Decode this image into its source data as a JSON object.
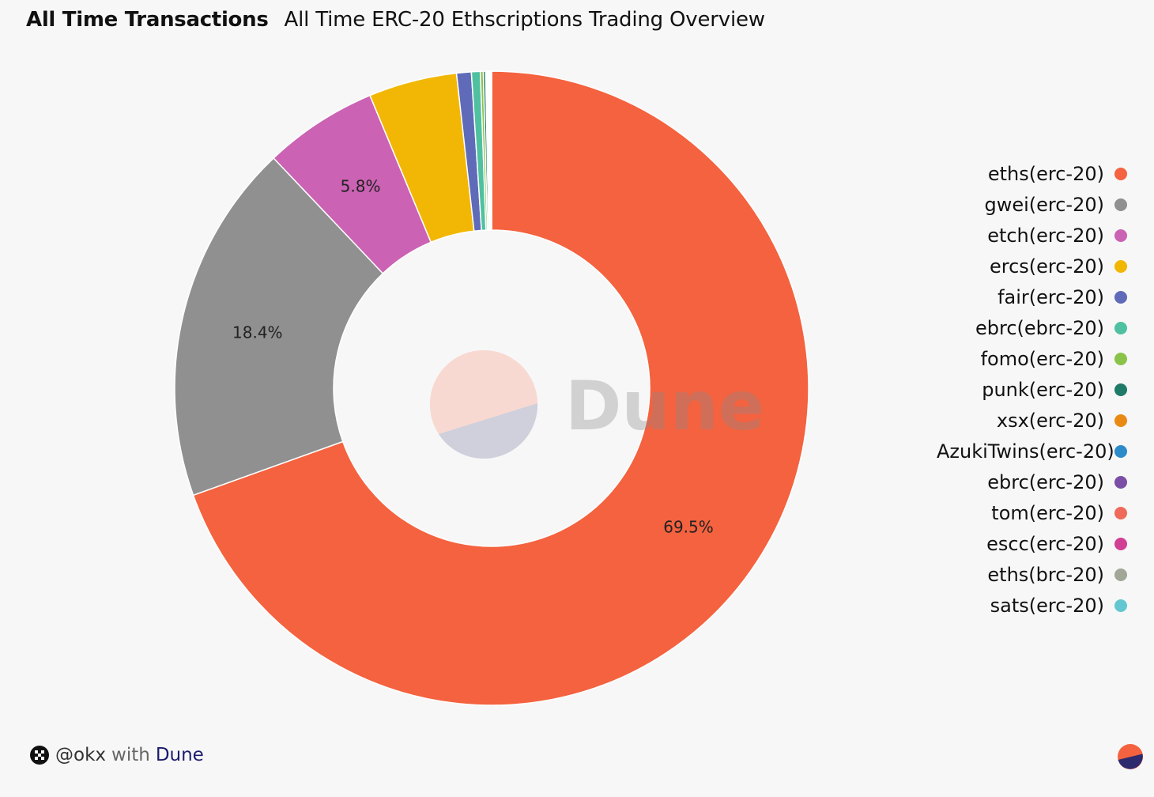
{
  "header": {
    "title": "All Time Transactions",
    "subtitle": "All Time ERC-20 Ethscriptions Trading Overview"
  },
  "watermark": {
    "text": "Dune"
  },
  "footer": {
    "user": "@okx",
    "with_text": "with",
    "brand": "Dune"
  },
  "chart_data": {
    "type": "pie",
    "style": "donut",
    "legend_position": "right",
    "slices": [
      {
        "label": "eths(erc-20)",
        "value": 69.5,
        "color": "#f4623f",
        "data_label": "69.5%"
      },
      {
        "label": "gwei(erc-20)",
        "value": 18.4,
        "color": "#909090",
        "data_label": "18.4%"
      },
      {
        "label": "etch(erc-20)",
        "value": 5.8,
        "color": "#cb62b4",
        "data_label": "5.8%"
      },
      {
        "label": "ercs(erc-20)",
        "value": 4.5,
        "color": "#f2b705",
        "data_label": ""
      },
      {
        "label": "fair(erc-20)",
        "value": 0.75,
        "color": "#5f6bb8",
        "data_label": ""
      },
      {
        "label": "ebrc(ebrc-20)",
        "value": 0.45,
        "color": "#4fc1a0",
        "data_label": ""
      },
      {
        "label": "fomo(erc-20)",
        "value": 0.15,
        "color": "#8bc34a",
        "data_label": ""
      },
      {
        "label": "punk(erc-20)",
        "value": 0.12,
        "color": "#1f7a68",
        "data_label": ""
      },
      {
        "label": "xsx(erc-20)",
        "value": 0.06,
        "color": "#e98a15",
        "data_label": ""
      },
      {
        "label": "AzukiTwins(erc-20)",
        "value": 0.05,
        "color": "#2e8bc9",
        "data_label": ""
      },
      {
        "label": "ebrc(erc-20)",
        "value": 0.05,
        "color": "#7b4fa6",
        "data_label": ""
      },
      {
        "label": "tom(erc-20)",
        "value": 0.04,
        "color": "#ef6a5a",
        "data_label": ""
      },
      {
        "label": "escc(erc-20)",
        "value": 0.04,
        "color": "#d13f94",
        "data_label": ""
      },
      {
        "label": "eths(brc-20)",
        "value": 0.03,
        "color": "#a0a796",
        "data_label": ""
      },
      {
        "label": "sats(erc-20)",
        "value": 0.03,
        "color": "#62c7d0",
        "data_label": ""
      }
    ]
  }
}
